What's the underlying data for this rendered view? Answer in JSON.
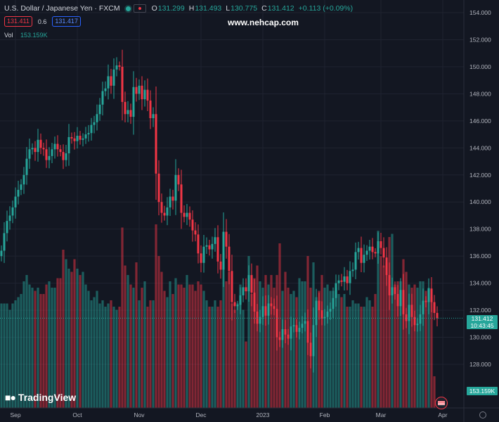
{
  "header": {
    "symbol": "U.S. Dollar / Japanese Yen · FXCM",
    "open_key": "O",
    "open": "131.299",
    "high_key": "H",
    "high": "131.493",
    "low_key": "L",
    "low": "130.775",
    "close_key": "C",
    "close": "131.412",
    "change": "+0.113 (+0.09%)",
    "status_icon": "market-open-dot",
    "visibility_icon": "eye-icon"
  },
  "quote": {
    "sell": "131.411",
    "spread": "0.6",
    "buy": "131.417"
  },
  "volume": {
    "label": "Vol",
    "value": "153.159K"
  },
  "watermark": "www.nehcap.com",
  "branding": {
    "logo_text": "TradingView",
    "logo_icon": "tradingview-logo-icon"
  },
  "price_label": {
    "value": "131.412",
    "countdown": "10:43:45"
  },
  "volume_label": "153.159K",
  "colors": {
    "up": "#26a69a",
    "down": "#f23645",
    "background": "#131722",
    "grid": "#1f2330",
    "axis_text": "#b2b5be"
  },
  "chart_data": {
    "type": "candlestick",
    "title": "",
    "ylim": [
      126,
      154
    ],
    "y_ticks": [
      "128.000",
      "130.000",
      "132.000",
      "134.000",
      "136.000",
      "138.000",
      "140.000",
      "142.000",
      "144.000",
      "146.000",
      "148.000",
      "150.000",
      "152.000",
      "154.000"
    ],
    "x_ticks": [
      {
        "label": "Sep",
        "index": 3
      },
      {
        "label": "Oct",
        "index": 25
      },
      {
        "label": "Nov",
        "index": 47
      },
      {
        "label": "Dec",
        "index": 69
      },
      {
        "label": "2023",
        "index": 91
      },
      {
        "label": "Feb",
        "index": 113
      },
      {
        "label": "Mar",
        "index": 133
      },
      {
        "label": "Apr",
        "index": 155
      }
    ],
    "close_line": 131.412,
    "closes": [
      136.4,
      137.7,
      138.6,
      139.0,
      139.6,
      140.4,
      140.9,
      141.3,
      142.0,
      143.2,
      143.9,
      144.0,
      143.7,
      144.6,
      144.0,
      143.9,
      143.1,
      143.4,
      143.9,
      144.3,
      143.9,
      143.7,
      143.1,
      143.6,
      144.8,
      144.7,
      144.5,
      144.9,
      144.6,
      144.7,
      145.0,
      145.1,
      145.7,
      145.9,
      146.5,
      147.2,
      148.2,
      148.4,
      149.3,
      148.6,
      149.8,
      150.1,
      150.0,
      147.4,
      146.5,
      146.8,
      146.3,
      148.5,
      148.0,
      148.6,
      147.6,
      148.3,
      147.5,
      146.2,
      146.5,
      142.1,
      140.0,
      139.2,
      139.0,
      139.6,
      140.4,
      140.1,
      142.0,
      141.3,
      139.2,
      138.9,
      139.2,
      138.7,
      137.9,
      137.6,
      136.2,
      135.5,
      136.7,
      136.8,
      136.5,
      136.9,
      137.4,
      135.6,
      135.0,
      137.8,
      136.7,
      134.9,
      132.6,
      132.3,
      132.4,
      133.1,
      133.7,
      133.4,
      134.6,
      133.3,
      131.9,
      131.0,
      131.5,
      132.3,
      131.6,
      132.5,
      132.3,
      132.1,
      130.0,
      129.8,
      130.6,
      130.2,
      129.9,
      130.8,
      130.9,
      130.4,
      130.7,
      131.0,
      131.2,
      129.6,
      128.6,
      130.9,
      132.7,
      132.0,
      131.4,
      131.5,
      131.9,
      132.1,
      132.9,
      134.0,
      134.2,
      134.1,
      134.5,
      134.0,
      134.9,
      135.0,
      136.3,
      136.6,
      135.5,
      136.1,
      136.4,
      136.7,
      136.3,
      136.2,
      137.1,
      136.6,
      135.9,
      134.6,
      133.1,
      133.7,
      133.2,
      132.3,
      133.5,
      131.7,
      131.2,
      132.4,
      131.5,
      130.9,
      131.0,
      131.7,
      132.7,
      132.6,
      133.6,
      132.6,
      131.8,
      131.4
    ],
    "volume_ylim": [
      0,
      100
    ],
    "volumes": [
      33,
      33,
      33,
      31,
      33,
      34,
      35,
      36,
      40,
      42,
      39,
      38,
      37,
      38,
      36,
      36,
      39,
      40,
      38,
      38,
      41,
      41,
      50,
      47,
      44,
      43,
      47,
      44,
      42,
      43,
      39,
      37,
      34,
      35,
      37,
      33,
      34,
      32,
      33,
      34,
      32,
      31,
      32,
      57,
      45,
      42,
      39,
      38,
      46,
      34,
      38,
      40,
      32,
      34,
      34,
      58,
      48,
      43,
      37,
      35,
      40,
      36,
      41,
      39,
      39,
      38,
      42,
      39,
      39,
      37,
      40,
      39,
      37,
      34,
      32,
      32,
      34,
      32,
      34,
      49,
      40,
      43,
      33,
      31,
      33,
      39,
      31,
      21,
      48,
      36,
      41,
      45,
      40,
      38,
      42,
      39,
      42,
      38,
      42,
      52,
      37,
      43,
      38,
      36,
      37,
      35,
      41,
      40,
      40,
      48,
      38,
      46,
      35,
      37,
      42,
      38,
      39,
      37,
      37,
      38,
      36,
      35,
      36,
      32,
      32,
      34,
      33,
      33,
      32,
      32,
      35,
      34,
      32,
      36,
      56,
      48,
      45,
      46,
      54,
      55,
      39,
      40,
      40,
      47,
      43,
      39,
      38,
      39,
      38,
      40,
      40,
      37,
      38,
      35,
      10
    ]
  }
}
